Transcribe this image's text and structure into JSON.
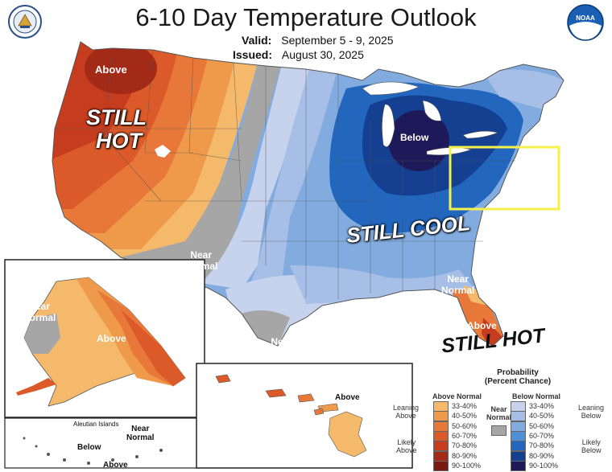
{
  "header": {
    "title": "6-10 Day Temperature Outlook",
    "valid_label": "Valid:",
    "valid_value": "September 5 - 9, 2025",
    "issued_label": "Issued:",
    "issued_value": "August 30, 2025"
  },
  "logos": {
    "left": "department-of-commerce-seal",
    "right": "noaa-logo",
    "noaa_text": "NOAA"
  },
  "map_labels": {
    "nw_above": "Above",
    "michigan_below": "Below",
    "sw_near_1": "Near",
    "sw_near_2": "Normal",
    "se_near_1": "Near",
    "se_near_2": "Normal",
    "fl_near_1": "Near",
    "fl_near_2": "Normal",
    "fl_above": "Above",
    "ak_near_1": "Near",
    "ak_near_2": "Normal",
    "ak_above": "Above",
    "hi_above": "Above",
    "aleutian_title": "Aleutian Islands",
    "aleutian_below": "Below",
    "aleutian_near_1": "Near",
    "aleutian_near_2": "Normal",
    "aleutian_above": "Above"
  },
  "annotations": {
    "still_hot_west_1": "STILL",
    "still_hot_west_2": "HOT",
    "still_cool": "STILL COOL",
    "still_hot_fl": "STILL HOT"
  },
  "legend": {
    "title_1": "Probability",
    "title_2": "(Percent Chance)",
    "above_header": "Above Normal",
    "below_header": "Below Normal",
    "near_label_1": "Near",
    "near_label_2": "Normal",
    "leaning_above_1": "Leaning",
    "leaning_above_2": "Above",
    "likely_above_1": "Likely",
    "likely_above_2": "Above",
    "leaning_below_1": "Leaning",
    "leaning_below_2": "Below",
    "likely_below_1": "Likely",
    "likely_below_2": "Below",
    "ranges": [
      "33-40%",
      "40-50%",
      "50-60%",
      "60-70%",
      "70-80%",
      "80-90%",
      "90-100%"
    ],
    "above_colors": [
      "#f4b96b",
      "#ee9a4a",
      "#e8783a",
      "#dc5a2a",
      "#c63c1e",
      "#a32a16",
      "#7a1a10"
    ],
    "below_colors": [
      "#c7d2ec",
      "#a7bfe6",
      "#82ace0",
      "#4f8fd6",
      "#2266be",
      "#153f91",
      "#1e1a5a"
    ],
    "near_color": "#a6a6a6"
  },
  "highlight_box_color": "#f5f04a"
}
